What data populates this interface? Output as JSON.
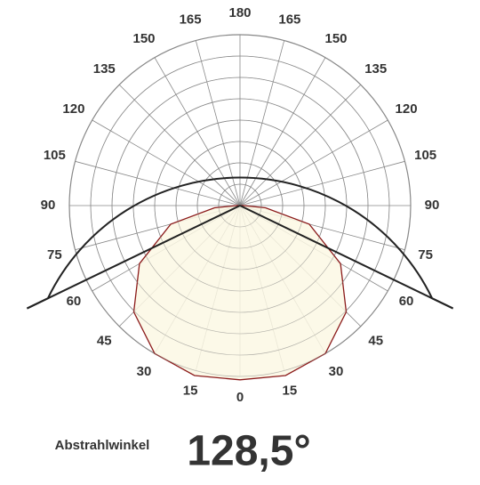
{
  "chart_data": {
    "type": "polar",
    "aticks": [
      0,
      15,
      30,
      45,
      60,
      75,
      90,
      105,
      120,
      135,
      150,
      165,
      180
    ],
    "angles": [
      -90,
      -85,
      -75,
      -60,
      -45,
      -30,
      -15,
      0,
      15,
      30,
      45,
      60,
      75,
      85,
      90
    ],
    "values": [
      0.02,
      0.15,
      0.42,
      0.68,
      0.88,
      1.0,
      1.03,
      1.02,
      1.03,
      1.0,
      0.88,
      0.68,
      0.42,
      0.15,
      0.02
    ],
    "rlim": [
      0,
      1
    ],
    "color": "#8b1a1a",
    "fill": "#fcf8e4",
    "beam_label": "Abstrahlwinkel",
    "beam_angle": 128.5,
    "beam_angle_label": "128,5°"
  }
}
